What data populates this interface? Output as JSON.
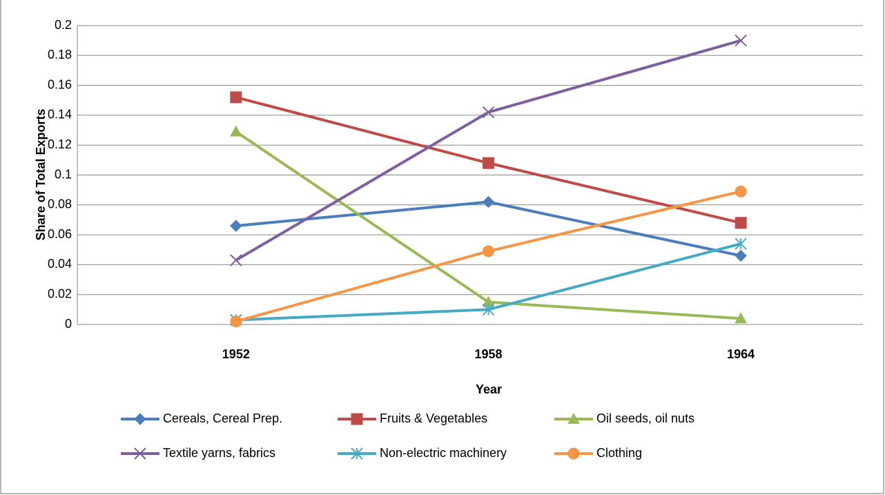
{
  "chart_data": {
    "type": "line",
    "x_label": "Year",
    "y_label": "Share of  Total Exports",
    "categories": [
      "1952",
      "1958",
      "1964"
    ],
    "series": [
      {
        "name": "Cereals, Cereal Prep.",
        "color": "#4a7ebb",
        "marker": "diamond",
        "values": [
          0.066,
          0.082,
          0.046
        ]
      },
      {
        "name": "Fruits & Vegetables",
        "color": "#be4b48",
        "marker": "square",
        "values": [
          0.152,
          0.108,
          0.068
        ]
      },
      {
        "name": "Oil seeds, oil nuts",
        "color": "#98b954",
        "marker": "triangle",
        "values": [
          0.129,
          0.015,
          0.004
        ]
      },
      {
        "name": "Textile yarns, fabrics",
        "color": "#7d5fa0",
        "marker": "x",
        "values": [
          0.043,
          0.142,
          0.19
        ]
      },
      {
        "name": "Non-electric machinery",
        "color": "#46aac5",
        "marker": "star",
        "values": [
          0.003,
          0.01,
          0.054
        ]
      },
      {
        "name": "Clothing",
        "color": "#f69545",
        "marker": "circle",
        "values": [
          0.002,
          0.049,
          0.089
        ]
      }
    ],
    "ylim": [
      0,
      0.2
    ],
    "yticks": [
      0,
      0.02,
      0.04,
      0.06,
      0.08,
      0.1,
      0.12,
      0.14,
      0.16,
      0.18,
      0.2
    ],
    "grid": true,
    "legend": "bottom"
  }
}
